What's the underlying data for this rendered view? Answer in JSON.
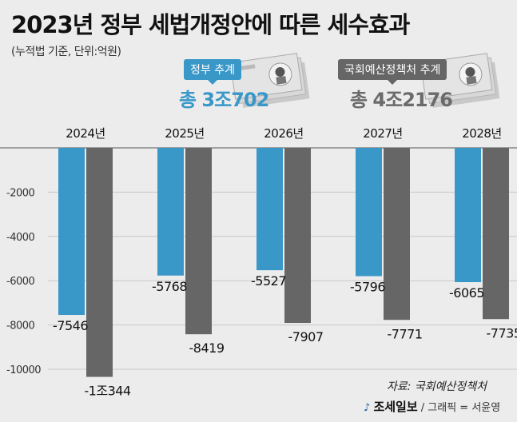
{
  "title": "2023년 정부 세법개정안에 따른 세수효과",
  "subtitle": "(누적법 기준, 단위:억원)",
  "legend": {
    "gov_label": "정부 추계",
    "nabo_label": "국회예산정책처 추계",
    "gov_total": "총 3조702",
    "nabo_total": "총 4조2176"
  },
  "source": "자료: 국회예산정책처",
  "footer": {
    "brand": "조세일보",
    "credit": "/ 그래픽 = 서윤영"
  },
  "colors": {
    "gov": "#3a98c9",
    "nabo": "#666666",
    "background": "#ececec"
  },
  "chart_data": {
    "type": "bar",
    "categories": [
      "2024년",
      "2025년",
      "2026년",
      "2027년",
      "2028년"
    ],
    "series": [
      {
        "name": "정부 추계",
        "values": [
          -7546,
          -5768,
          -5527,
          -5796,
          -6065
        ],
        "labels": [
          "-7546",
          "-5768",
          "-5527",
          "-5796",
          "-6065"
        ]
      },
      {
        "name": "국회예산정책처 추계",
        "values": [
          -10344,
          -8419,
          -7907,
          -7771,
          -7735
        ],
        "labels": [
          "-1조344",
          "-8419",
          "-7907",
          "-7771",
          "-7735"
        ]
      }
    ],
    "yticks": [
      -2000,
      -4000,
      -6000,
      -8000,
      -10000
    ],
    "ylim": [
      -10000,
      0
    ],
    "grid": true,
    "xaxis_position": "top"
  }
}
